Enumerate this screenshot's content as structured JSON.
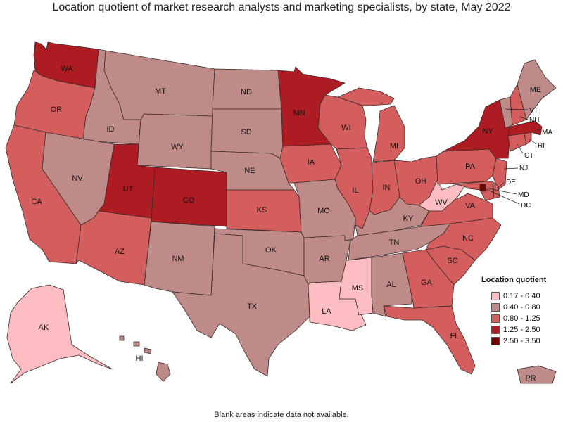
{
  "title": "Location quotient of market research analysts and marketing specialists, by state, May 2022",
  "footnote": "Blank areas indicate data not available.",
  "legend": {
    "title": "Location quotient",
    "bins": [
      {
        "label": "0.17 - 0.40",
        "color": "#fbbdc1"
      },
      {
        "label": "0.40 - 0.80",
        "color": "#bf8b89"
      },
      {
        "label": "0.80 - 1.25",
        "color": "#d45d5d"
      },
      {
        "label": "1.25 - 2.50",
        "color": "#ad1c22"
      },
      {
        "label": "2.50 - 3.50",
        "color": "#760000"
      }
    ]
  },
  "states": [
    {
      "abbr": "WA",
      "bin": 3
    },
    {
      "abbr": "OR",
      "bin": 2
    },
    {
      "abbr": "CA",
      "bin": 2
    },
    {
      "abbr": "ID",
      "bin": 1
    },
    {
      "abbr": "NV",
      "bin": 1
    },
    {
      "abbr": "MT",
      "bin": 1
    },
    {
      "abbr": "WY",
      "bin": 1
    },
    {
      "abbr": "UT",
      "bin": 3
    },
    {
      "abbr": "AZ",
      "bin": 2
    },
    {
      "abbr": "CO",
      "bin": 3
    },
    {
      "abbr": "NM",
      "bin": 1
    },
    {
      "abbr": "ND",
      "bin": 1
    },
    {
      "abbr": "SD",
      "bin": 1
    },
    {
      "abbr": "NE",
      "bin": 1
    },
    {
      "abbr": "KS",
      "bin": 2
    },
    {
      "abbr": "OK",
      "bin": 1
    },
    {
      "abbr": "TX",
      "bin": 1
    },
    {
      "abbr": "MN",
      "bin": 3
    },
    {
      "abbr": "IA",
      "bin": 2
    },
    {
      "abbr": "MO",
      "bin": 1
    },
    {
      "abbr": "AR",
      "bin": 1
    },
    {
      "abbr": "LA",
      "bin": 0
    },
    {
      "abbr": "WI",
      "bin": 2
    },
    {
      "abbr": "IL",
      "bin": 2
    },
    {
      "abbr": "MI",
      "bin": 2
    },
    {
      "abbr": "IN",
      "bin": 2
    },
    {
      "abbr": "OH",
      "bin": 2
    },
    {
      "abbr": "KY",
      "bin": 1
    },
    {
      "abbr": "TN",
      "bin": 1
    },
    {
      "abbr": "MS",
      "bin": 0
    },
    {
      "abbr": "AL",
      "bin": 1
    },
    {
      "abbr": "GA",
      "bin": 2
    },
    {
      "abbr": "FL",
      "bin": 2
    },
    {
      "abbr": "SC",
      "bin": 2
    },
    {
      "abbr": "NC",
      "bin": 2
    },
    {
      "abbr": "VA",
      "bin": 2
    },
    {
      "abbr": "WV",
      "bin": 0
    },
    {
      "abbr": "PA",
      "bin": 2
    },
    {
      "abbr": "NY",
      "bin": 3
    },
    {
      "abbr": "NJ",
      "bin": 2
    },
    {
      "abbr": "DE",
      "bin": 2
    },
    {
      "abbr": "MD",
      "bin": 2
    },
    {
      "abbr": "DC",
      "bin": 4
    },
    {
      "abbr": "CT",
      "bin": 2
    },
    {
      "abbr": "RI",
      "bin": 2
    },
    {
      "abbr": "MA",
      "bin": 3
    },
    {
      "abbr": "VT",
      "bin": 1
    },
    {
      "abbr": "NH",
      "bin": 2
    },
    {
      "abbr": "ME",
      "bin": 1
    },
    {
      "abbr": "AK",
      "bin": 0
    },
    {
      "abbr": "HI",
      "bin": 1
    },
    {
      "abbr": "PR",
      "bin": 1
    }
  ]
}
